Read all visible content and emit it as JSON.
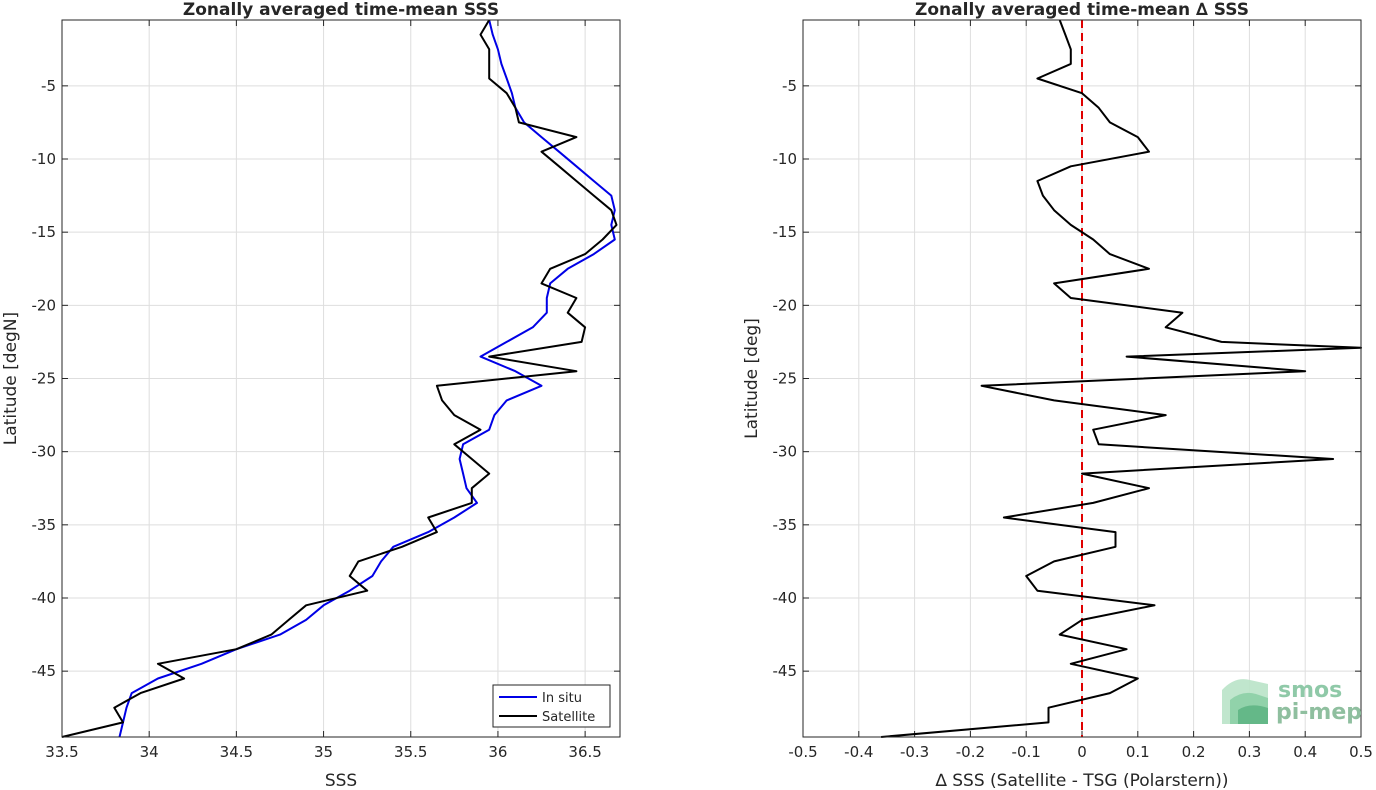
{
  "chart_data": [
    {
      "type": "line",
      "title": "Zonally averaged time-mean SSS",
      "xlabel": "SSS",
      "ylabel": "Latitude [degN]",
      "xlim": [
        33.5,
        36.7
      ],
      "ylim": [
        -49.5,
        -0.5
      ],
      "xticks": [
        "33.5",
        "34",
        "34.5",
        "35",
        "35.5",
        "36",
        "36.5"
      ],
      "yticks": [
        "-5",
        "-10",
        "-15",
        "-20",
        "-25",
        "-30",
        "-35",
        "-40",
        "-45"
      ],
      "grid": true,
      "legend_position": "bottom-right",
      "series": [
        {
          "name": "In situ",
          "color": "#0000e6",
          "points": [
            [
              35.95,
              -0.5
            ],
            [
              35.97,
              -1.5
            ],
            [
              36.0,
              -2.5
            ],
            [
              36.02,
              -3.5
            ],
            [
              36.05,
              -4.5
            ],
            [
              36.08,
              -5.5
            ],
            [
              36.1,
              -6.5
            ],
            [
              36.15,
              -7.5
            ],
            [
              36.25,
              -8.5
            ],
            [
              36.35,
              -9.5
            ],
            [
              36.45,
              -10.5
            ],
            [
              36.55,
              -11.5
            ],
            [
              36.65,
              -12.5
            ],
            [
              36.67,
              -13.5
            ],
            [
              36.65,
              -14.5
            ],
            [
              36.67,
              -15.5
            ],
            [
              36.55,
              -16.5
            ],
            [
              36.4,
              -17.5
            ],
            [
              36.3,
              -18.5
            ],
            [
              36.28,
              -19.5
            ],
            [
              36.28,
              -20.5
            ],
            [
              36.2,
              -21.5
            ],
            [
              36.05,
              -22.5
            ],
            [
              35.9,
              -23.5
            ],
            [
              36.1,
              -24.5
            ],
            [
              36.25,
              -25.5
            ],
            [
              36.05,
              -26.5
            ],
            [
              35.98,
              -27.5
            ],
            [
              35.95,
              -28.5
            ],
            [
              35.8,
              -29.5
            ],
            [
              35.78,
              -30.5
            ],
            [
              35.8,
              -31.5
            ],
            [
              35.82,
              -32.5
            ],
            [
              35.88,
              -33.5
            ],
            [
              35.75,
              -34.5
            ],
            [
              35.6,
              -35.5
            ],
            [
              35.4,
              -36.5
            ],
            [
              35.33,
              -37.5
            ],
            [
              35.28,
              -38.5
            ],
            [
              35.15,
              -39.5
            ],
            [
              35.0,
              -40.5
            ],
            [
              34.9,
              -41.5
            ],
            [
              34.75,
              -42.5
            ],
            [
              34.5,
              -43.5
            ],
            [
              34.3,
              -44.5
            ],
            [
              34.05,
              -45.5
            ],
            [
              33.9,
              -46.5
            ],
            [
              33.87,
              -47.5
            ],
            [
              33.85,
              -48.5
            ],
            [
              33.83,
              -49.5
            ]
          ]
        },
        {
          "name": "Satellite",
          "color": "#000000",
          "points": [
            [
              35.95,
              -0.5
            ],
            [
              35.9,
              -1.5
            ],
            [
              35.95,
              -2.5
            ],
            [
              35.95,
              -3.5
            ],
            [
              35.95,
              -4.5
            ],
            [
              36.05,
              -5.5
            ],
            [
              36.1,
              -6.5
            ],
            [
              36.12,
              -7.5
            ],
            [
              36.45,
              -8.5
            ],
            [
              36.25,
              -9.5
            ],
            [
              36.35,
              -10.5
            ],
            [
              36.45,
              -11.5
            ],
            [
              36.55,
              -12.5
            ],
            [
              36.65,
              -13.5
            ],
            [
              36.68,
              -14.5
            ],
            [
              36.6,
              -15.5
            ],
            [
              36.5,
              -16.5
            ],
            [
              36.3,
              -17.5
            ],
            [
              36.25,
              -18.5
            ],
            [
              36.45,
              -19.5
            ],
            [
              36.4,
              -20.5
            ],
            [
              36.5,
              -21.5
            ],
            [
              36.48,
              -22.5
            ],
            [
              35.95,
              -23.5
            ],
            [
              36.45,
              -24.5
            ],
            [
              35.65,
              -25.5
            ],
            [
              35.68,
              -26.5
            ],
            [
              35.75,
              -27.5
            ],
            [
              35.9,
              -28.5
            ],
            [
              35.75,
              -29.5
            ],
            [
              35.85,
              -30.5
            ],
            [
              35.95,
              -31.5
            ],
            [
              35.85,
              -32.5
            ],
            [
              35.85,
              -33.5
            ],
            [
              35.6,
              -34.5
            ],
            [
              35.65,
              -35.5
            ],
            [
              35.45,
              -36.5
            ],
            [
              35.2,
              -37.5
            ],
            [
              35.15,
              -38.5
            ],
            [
              35.25,
              -39.5
            ],
            [
              34.9,
              -40.5
            ],
            [
              34.8,
              -41.5
            ],
            [
              34.7,
              -42.5
            ],
            [
              34.5,
              -43.5
            ],
            [
              34.05,
              -44.5
            ],
            [
              34.2,
              -45.5
            ],
            [
              33.95,
              -46.5
            ],
            [
              33.8,
              -47.5
            ],
            [
              33.85,
              -48.5
            ],
            [
              33.5,
              -49.5
            ]
          ]
        }
      ]
    },
    {
      "type": "line",
      "title": "Zonally averaged time-mean ∆ SSS",
      "xlabel": "∆ SSS (Satellite - TSG (Polarstern))",
      "ylabel": "Latitude [deg]",
      "xlim": [
        -0.5,
        0.5
      ],
      "ylim": [
        -49.5,
        -0.5
      ],
      "xticks": [
        "-0.5",
        "-0.4",
        "-0.3",
        "-0.2",
        "-0.1",
        "0",
        "0.1",
        "0.2",
        "0.3",
        "0.4",
        "0.5"
      ],
      "yticks": [
        "-5",
        "-10",
        "-15",
        "-20",
        "-25",
        "-30",
        "-35",
        "-40",
        "-45"
      ],
      "grid": true,
      "reference_line": {
        "x": 0,
        "color": "#e00000",
        "style": "dashed"
      },
      "series": [
        {
          "color": "#000000",
          "points": [
            [
              -0.04,
              -0.5
            ],
            [
              -0.03,
              -1.5
            ],
            [
              -0.02,
              -2.5
            ],
            [
              -0.02,
              -3.5
            ],
            [
              -0.08,
              -4.5
            ],
            [
              0.0,
              -5.5
            ],
            [
              0.03,
              -6.5
            ],
            [
              0.05,
              -7.5
            ],
            [
              0.1,
              -8.5
            ],
            [
              0.12,
              -9.5
            ],
            [
              -0.02,
              -10.5
            ],
            [
              -0.08,
              -11.5
            ],
            [
              -0.07,
              -12.5
            ],
            [
              -0.05,
              -13.5
            ],
            [
              -0.02,
              -14.5
            ],
            [
              0.02,
              -15.5
            ],
            [
              0.05,
              -16.5
            ],
            [
              0.12,
              -17.5
            ],
            [
              -0.05,
              -18.5
            ],
            [
              -0.02,
              -19.5
            ],
            [
              0.18,
              -20.5
            ],
            [
              0.15,
              -21.5
            ],
            [
              0.25,
              -22.5
            ],
            [
              0.5,
              -22.9
            ],
            [
              0.08,
              -23.5
            ],
            [
              0.4,
              -24.5
            ],
            [
              -0.18,
              -25.5
            ],
            [
              -0.05,
              -26.5
            ],
            [
              0.15,
              -27.5
            ],
            [
              0.02,
              -28.5
            ],
            [
              0.03,
              -29.5
            ],
            [
              0.45,
              -30.5
            ],
            [
              0.0,
              -31.5
            ],
            [
              0.12,
              -32.5
            ],
            [
              0.02,
              -33.5
            ],
            [
              -0.14,
              -34.5
            ],
            [
              0.06,
              -35.5
            ],
            [
              0.06,
              -36.5
            ],
            [
              -0.05,
              -37.5
            ],
            [
              -0.1,
              -38.5
            ],
            [
              -0.08,
              -39.5
            ],
            [
              0.13,
              -40.5
            ],
            [
              0.0,
              -41.5
            ],
            [
              -0.04,
              -42.5
            ],
            [
              0.08,
              -43.5
            ],
            [
              -0.02,
              -44.5
            ],
            [
              0.1,
              -45.5
            ],
            [
              0.05,
              -46.5
            ],
            [
              -0.06,
              -47.5
            ],
            [
              -0.06,
              -48.5
            ],
            [
              -0.36,
              -49.5
            ]
          ]
        }
      ]
    }
  ],
  "logo": {
    "line1": "smos",
    "line2": "pi-mep"
  }
}
